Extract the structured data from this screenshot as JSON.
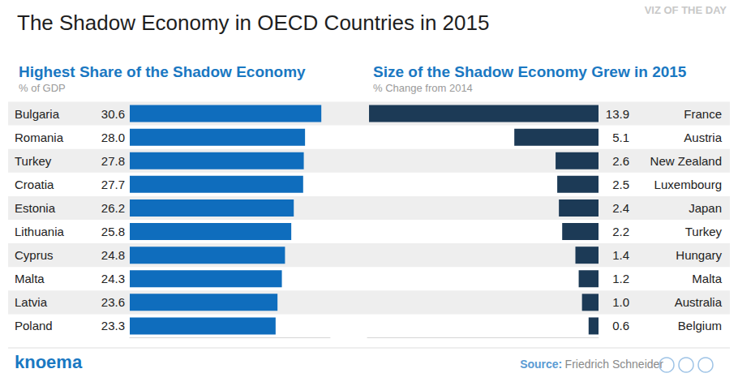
{
  "title": "The Shadow Economy in OECD Countries in 2015",
  "badge": "VIZ OF THE DAY",
  "brand": "knoema",
  "source_label": "Source:",
  "source": "Friedrich Schneider",
  "chart_data": [
    {
      "type": "bar",
      "title": "Highest Share of the Shadow Economy",
      "subtitle": "% of GDP",
      "orientation": "horizontal",
      "categories": [
        "Bulgaria",
        "Romania",
        "Turkey",
        "Croatia",
        "Estonia",
        "Lithuania",
        "Cyprus",
        "Malta",
        "Latvia",
        "Poland"
      ],
      "values": [
        30.6,
        28.0,
        27.8,
        27.7,
        26.2,
        25.8,
        24.8,
        24.3,
        23.6,
        23.3
      ],
      "value_labels": [
        "30.6",
        "28.0",
        "27.8",
        "27.7",
        "26.2",
        "25.8",
        "24.8",
        "24.3",
        "23.6",
        "23.3"
      ],
      "color": "#0f6dbd",
      "xlim": [
        0,
        32
      ],
      "xticks": [],
      "grid": false,
      "data_labels": true,
      "tick_labels": "y"
    },
    {
      "type": "bar",
      "title": "Size of the Shadow Economy Grew in 2015",
      "subtitle": "% Change from 2014",
      "orientation": "horizontal",
      "categories": [
        "France",
        "Austria",
        "New Zealand",
        "Luxembourg",
        "Japan",
        "Turkey",
        "Hungary",
        "Malta",
        "Australia",
        "Belgium"
      ],
      "values": [
        13.9,
        5.1,
        2.6,
        2.5,
        2.4,
        2.2,
        1.4,
        1.2,
        1.0,
        0.6
      ],
      "value_labels": [
        "13.9",
        "5.1",
        "2.6",
        "2.5",
        "2.4",
        "2.2",
        "1.4",
        "1.2",
        "1.0",
        "0.6"
      ],
      "color": "#1c3a56",
      "xlim": [
        0,
        14
      ],
      "xticks": [],
      "grid": false,
      "data_labels": true,
      "tick_labels": "y"
    }
  ]
}
